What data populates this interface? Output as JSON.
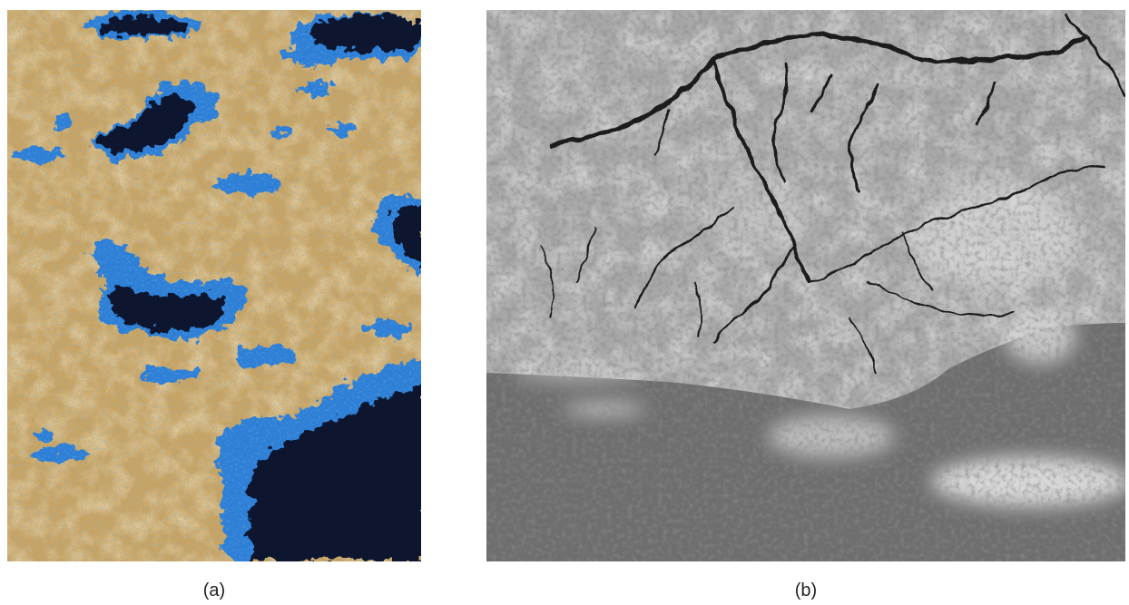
{
  "figure": {
    "panels": [
      {
        "id": "a",
        "label": "(a)",
        "content": "false-color-terrain-with-dark-blue-lakes",
        "colors": {
          "terrain": "#c9a463",
          "terrain_light": "#e2c890",
          "terrain_dark": "#9c7a3e",
          "lake_edge": "#2f7fd6",
          "lake_core": "#07152e"
        }
      },
      {
        "id": "b",
        "label": "(b)",
        "content": "grayscale-terrain-with-dendritic-channels",
        "colors": {
          "land": "#a8a8a8",
          "land_light": "#d6d6d6",
          "channel": "#1a1a1a",
          "lowland": "#6e6e6e"
        }
      }
    ]
  }
}
